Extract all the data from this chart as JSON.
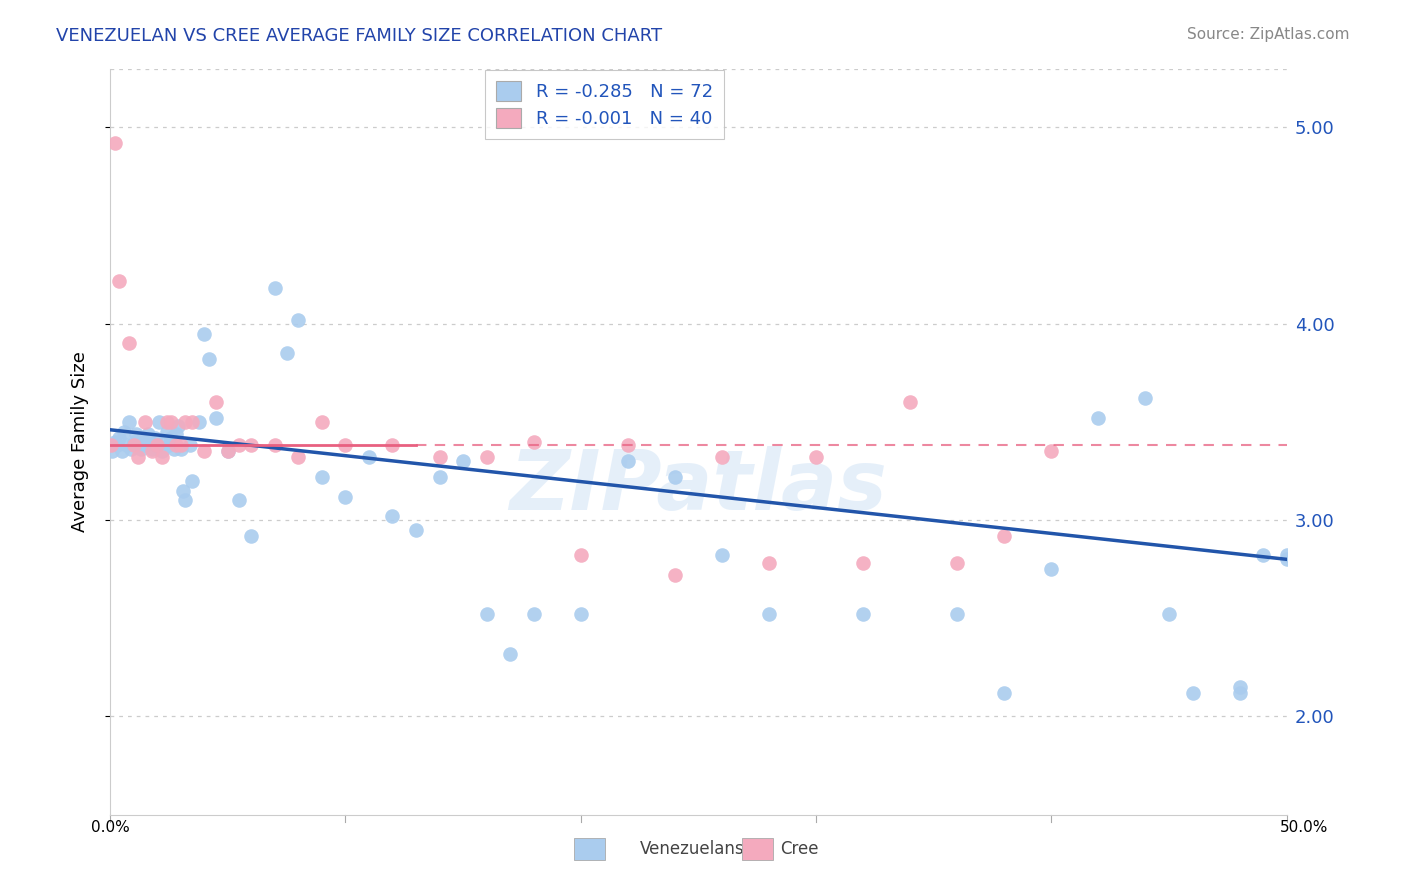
{
  "title": "VENEZUELAN VS CREE AVERAGE FAMILY SIZE CORRELATION CHART",
  "source": "Source: ZipAtlas.com",
  "ylabel": "Average Family Size",
  "xlim": [
    0.0,
    50.0
  ],
  "ylim": [
    1.5,
    5.3
  ],
  "yticks": [
    2.0,
    3.0,
    4.0,
    5.0
  ],
  "xticks": [
    0.0,
    10.0,
    20.0,
    30.0,
    40.0,
    50.0
  ],
  "venezuelan_color": "#aaccee",
  "cree_color": "#f4aabe",
  "trend_blue": "#2255aa",
  "trend_pink": "#e86080",
  "R_venezuelan": -0.285,
  "N_venezuelan": 72,
  "R_cree": -0.001,
  "N_cree": 40,
  "venezuelan_x": [
    0.1,
    0.2,
    0.3,
    0.4,
    0.5,
    0.6,
    0.7,
    0.8,
    0.9,
    1.0,
    1.1,
    1.2,
    1.3,
    1.4,
    1.5,
    1.6,
    1.7,
    1.8,
    1.9,
    2.0,
    2.1,
    2.2,
    2.3,
    2.4,
    2.5,
    2.6,
    2.7,
    2.8,
    2.9,
    3.0,
    3.1,
    3.2,
    3.4,
    3.5,
    3.8,
    4.0,
    4.2,
    4.5,
    5.0,
    5.5,
    6.0,
    7.0,
    7.5,
    8.0,
    9.0,
    10.0,
    11.0,
    12.0,
    13.0,
    14.0,
    15.0,
    16.0,
    17.0,
    18.0,
    20.0,
    22.0,
    24.0,
    26.0,
    28.0,
    32.0,
    36.0,
    38.0,
    40.0,
    42.0,
    44.0,
    45.0,
    46.0,
    48.0,
    48.0,
    49.0,
    50.0,
    50.0
  ],
  "venezuelan_y": [
    3.35,
    3.4,
    3.38,
    3.42,
    3.35,
    3.45,
    3.38,
    3.5,
    3.36,
    3.4,
    3.44,
    3.38,
    3.36,
    3.42,
    3.38,
    3.44,
    3.4,
    3.36,
    3.42,
    3.38,
    3.5,
    3.35,
    3.4,
    3.45,
    3.38,
    3.42,
    3.36,
    3.44,
    3.48,
    3.36,
    3.15,
    3.1,
    3.38,
    3.2,
    3.5,
    3.95,
    3.82,
    3.52,
    3.35,
    3.1,
    2.92,
    4.18,
    3.85,
    4.02,
    3.22,
    3.12,
    3.32,
    3.02,
    2.95,
    3.22,
    3.3,
    2.52,
    2.32,
    2.52,
    2.52,
    3.3,
    3.22,
    2.82,
    2.52,
    2.52,
    2.52,
    2.12,
    2.75,
    3.52,
    3.62,
    2.52,
    2.12,
    2.12,
    2.15,
    2.82,
    2.82,
    2.8
  ],
  "cree_x": [
    0.05,
    0.2,
    0.4,
    0.8,
    1.0,
    1.2,
    1.5,
    1.8,
    2.0,
    2.2,
    2.4,
    2.6,
    2.8,
    3.0,
    3.2,
    3.5,
    4.0,
    4.5,
    5.0,
    5.5,
    6.0,
    7.0,
    8.0,
    9.0,
    10.0,
    12.0,
    14.0,
    16.0,
    18.0,
    20.0,
    22.0,
    24.0,
    26.0,
    28.0,
    30.0,
    32.0,
    34.0,
    36.0,
    38.0,
    40.0
  ],
  "cree_y": [
    3.38,
    4.92,
    4.22,
    3.9,
    3.38,
    3.32,
    3.5,
    3.35,
    3.38,
    3.32,
    3.5,
    3.5,
    3.38,
    3.38,
    3.5,
    3.5,
    3.35,
    3.6,
    3.35,
    3.38,
    3.38,
    3.38,
    3.32,
    3.5,
    3.38,
    3.38,
    3.32,
    3.32,
    3.4,
    2.82,
    3.38,
    2.72,
    3.32,
    2.78,
    3.32,
    2.78,
    3.6,
    2.78,
    2.92,
    3.35
  ],
  "trend_v_x0": 0.0,
  "trend_v_y0": 3.46,
  "trend_v_x1": 50.0,
  "trend_v_y1": 2.8,
  "trend_c_y": 3.38,
  "trend_solid_end": 13.0,
  "watermark": "ZIPatlas"
}
